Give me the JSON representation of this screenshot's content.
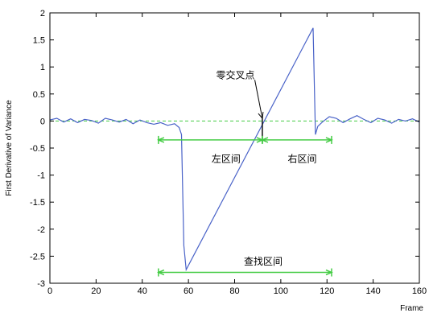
{
  "chart_data": {
    "type": "line",
    "title": "",
    "xlabel": "Frame",
    "ylabel": "First Derivative of Variance",
    "xlim": [
      0,
      160
    ],
    "ylim": [
      -3,
      2
    ],
    "xticks": [
      0,
      20,
      40,
      60,
      80,
      100,
      120,
      140,
      160
    ],
    "yticks": [
      2,
      1.5,
      1,
      0.5,
      0,
      -0.5,
      -1,
      -1.5,
      -2,
      -2.5,
      -3
    ],
    "grid": false,
    "colors": {
      "series": "#4a63c8",
      "annotation": "#44cc44",
      "axes": "#000000"
    },
    "series": [
      {
        "x": [
          0,
          3,
          6,
          9,
          12,
          15,
          18,
          21,
          24,
          27,
          30,
          33,
          36,
          39,
          42,
          45,
          48,
          51,
          54,
          56,
          57,
          58,
          59,
          114,
          115,
          116,
          118,
          121,
          124,
          127,
          130,
          133,
          136,
          139,
          142,
          145,
          148,
          151,
          154,
          157,
          160
        ],
        "y": [
          0.02,
          0.05,
          -0.02,
          0.04,
          -0.03,
          0.03,
          0.01,
          -0.04,
          0.05,
          0.02,
          -0.02,
          0.03,
          -0.05,
          0.02,
          -0.03,
          -0.06,
          -0.03,
          -0.08,
          -0.05,
          -0.12,
          -0.25,
          -2.3,
          -2.75,
          1.72,
          -0.25,
          -0.1,
          -0.02,
          0.08,
          0.05,
          -0.03,
          0.04,
          0.1,
          0.03,
          -0.03,
          0.05,
          0.02,
          -0.04,
          0.03,
          0.0,
          0.04,
          -0.02
        ]
      }
    ],
    "reference_lines": [
      {
        "orientation": "horizontal",
        "y": 0,
        "x_from": 0,
        "x_to": 160,
        "style": "dashed"
      }
    ],
    "annotations": [
      {
        "text": "零交叉点",
        "x": 72,
        "y": 0.85,
        "arrow_to": [
          92,
          0.05
        ]
      },
      {
        "text": "左区间",
        "x": 70,
        "y": -0.7,
        "interval": [
          47,
          92
        ],
        "interval_y": -0.35
      },
      {
        "text": "右区间",
        "x": 103,
        "y": -0.7,
        "interval": [
          92,
          122
        ],
        "interval_y": -0.35
      },
      {
        "text": "查找区间",
        "x": 84,
        "y": -2.6,
        "interval": [
          47,
          122
        ],
        "interval_y": -2.8
      }
    ],
    "zero_cross_marker": {
      "x": 92,
      "y_from": -0.4,
      "y_to": 0.08
    }
  }
}
